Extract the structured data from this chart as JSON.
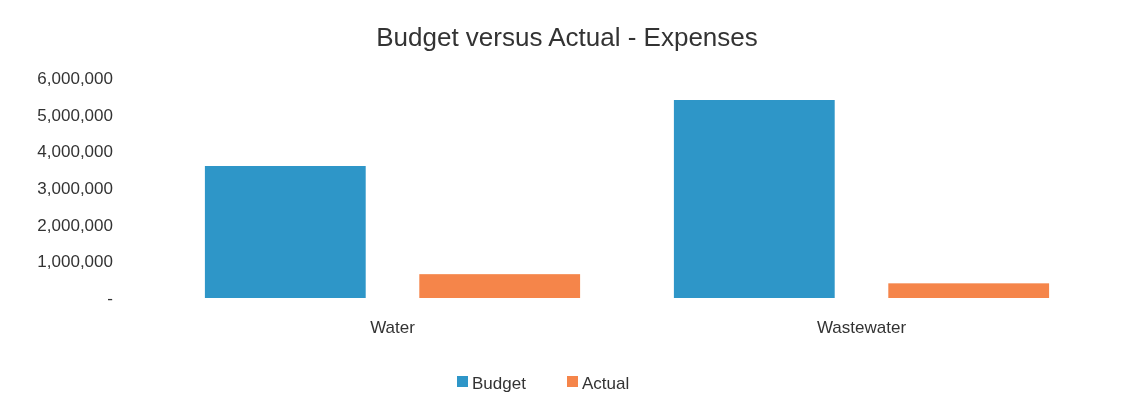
{
  "chart_data": {
    "type": "bar",
    "title": "Budget versus Actual - Expenses",
    "categories": [
      "Water",
      "Wastewater"
    ],
    "series": [
      {
        "name": "Budget",
        "color": "#2e96c8",
        "values": [
          3600000,
          5400000
        ]
      },
      {
        "name": "Actual",
        "color": "#f5854a",
        "values": [
          650000,
          400000
        ]
      }
    ],
    "ylim": [
      0,
      6000000
    ],
    "yticks": [
      {
        "value": 0,
        "label": "-"
      },
      {
        "value": 1000000,
        "label": "1,000,000"
      },
      {
        "value": 2000000,
        "label": "2,000,000"
      },
      {
        "value": 3000000,
        "label": "3,000,000"
      },
      {
        "value": 4000000,
        "label": "4,000,000"
      },
      {
        "value": 5000000,
        "label": "5,000,000"
      },
      {
        "value": 6000000,
        "label": "6,000,000"
      }
    ],
    "legend": "bottom"
  }
}
